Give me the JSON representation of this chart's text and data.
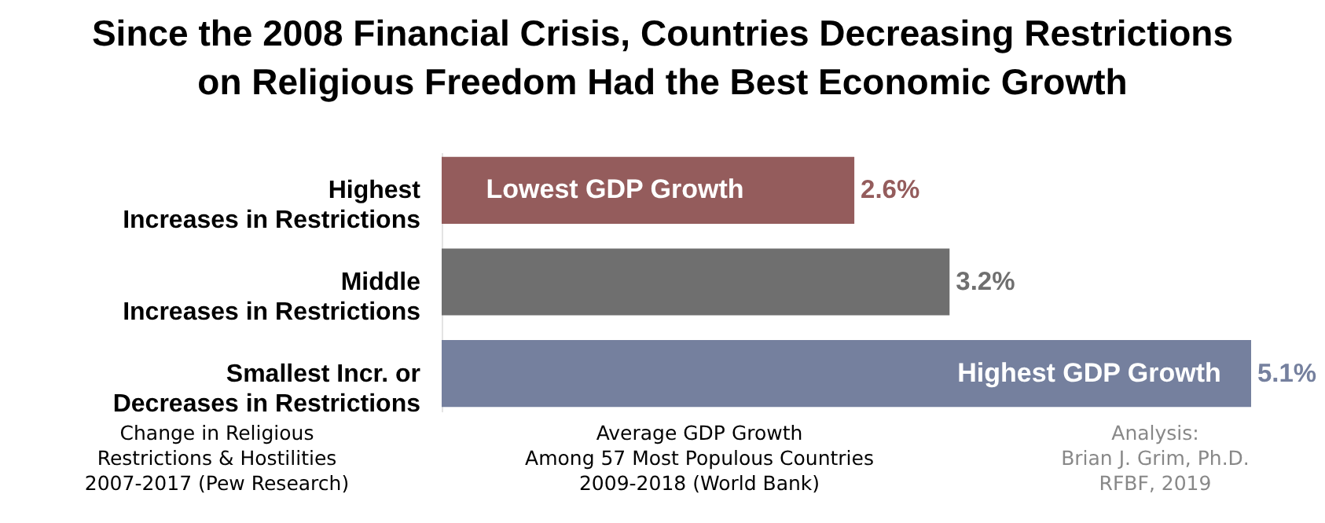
{
  "chart_data": {
    "type": "bar",
    "orientation": "horizontal",
    "title": "Since the 2008 Financial Crisis, Countries Decreasing Restrictions\non Religious Freedom Had the Best Economic Growth",
    "categories": [
      "Highest\nIncreases in Restrictions",
      "Middle\nIncreases in Restrictions",
      "Smallest Incr. or\nDecreases in Restrictions"
    ],
    "values": [
      2.6,
      3.2,
      5.1
    ],
    "colors": [
      "#945c5c",
      "#6f6f6f",
      "#75809e"
    ],
    "value_labels": [
      "2.6%",
      "3.2%",
      "5.1%"
    ],
    "legend": false,
    "annotations": [
      "Lowest GDP Growth",
      "Highest GDP Growth",
      "Change in Religious\nRestrictions & Hostilities\n2007-2017 (Pew Research)",
      "Average GDP Growth\nAmong 57 Most Populous Countries\n2009-2018 (World Bank)",
      "Analysis:\nBrian J. Grim, Ph.D.\nRFBF, 2019"
    ]
  }
}
